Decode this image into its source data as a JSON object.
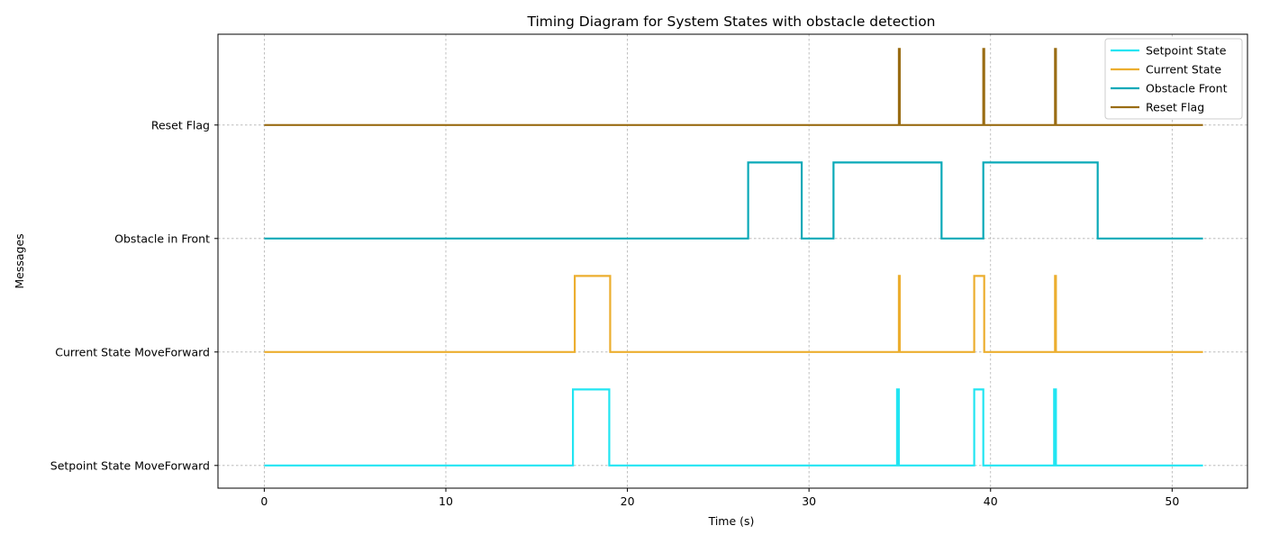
{
  "chart_data": {
    "type": "line",
    "title": "Timing Diagram for System States with obstacle detection",
    "xlabel": "Time (s)",
    "ylabel": "Messages",
    "xlim": [
      -2.55,
      54.15
    ],
    "ylim": [
      -0.2,
      3.8
    ],
    "xticks": [
      0,
      10,
      20,
      30,
      40,
      50
    ],
    "yticks": [
      {
        "value": 0,
        "label": "Setpoint State MoveForward"
      },
      {
        "value": 1,
        "label": "Current State MoveForward"
      },
      {
        "value": 2,
        "label": "Obstacle in Front"
      },
      {
        "value": 3,
        "label": "Reset Flag"
      }
    ],
    "grid": true,
    "legend_position": "top-right",
    "series": [
      {
        "name": "Setpoint State",
        "color": "#22e5f2",
        "baseline": 0,
        "high": 0.67,
        "x_end": 51.7,
        "pulses": [
          [
            17.0,
            19.0
          ],
          [
            34.85,
            34.95
          ],
          [
            39.1,
            39.6
          ],
          [
            43.5,
            43.6
          ]
        ]
      },
      {
        "name": "Current State",
        "color": "#ecae2f",
        "baseline": 1,
        "high": 1.67,
        "x_end": 51.7,
        "pulses": [
          [
            17.1,
            19.05
          ],
          [
            34.95,
            35.0
          ],
          [
            39.1,
            39.65
          ],
          [
            43.55,
            43.6
          ]
        ]
      },
      {
        "name": "Obstacle Front",
        "color": "#0aa9b8",
        "baseline": 2,
        "high": 2.67,
        "x_end": 51.7,
        "pulses": [
          [
            26.65,
            29.6
          ],
          [
            31.35,
            37.3
          ],
          [
            39.6,
            45.9
          ]
        ]
      },
      {
        "name": "Reset Flag",
        "color": "#9a6d14",
        "baseline": 3,
        "high": 3.67,
        "x_end": 51.7,
        "pulses": [
          [
            34.95,
            35.0
          ],
          [
            39.6,
            39.65
          ],
          [
            43.55,
            43.6
          ]
        ]
      }
    ]
  }
}
